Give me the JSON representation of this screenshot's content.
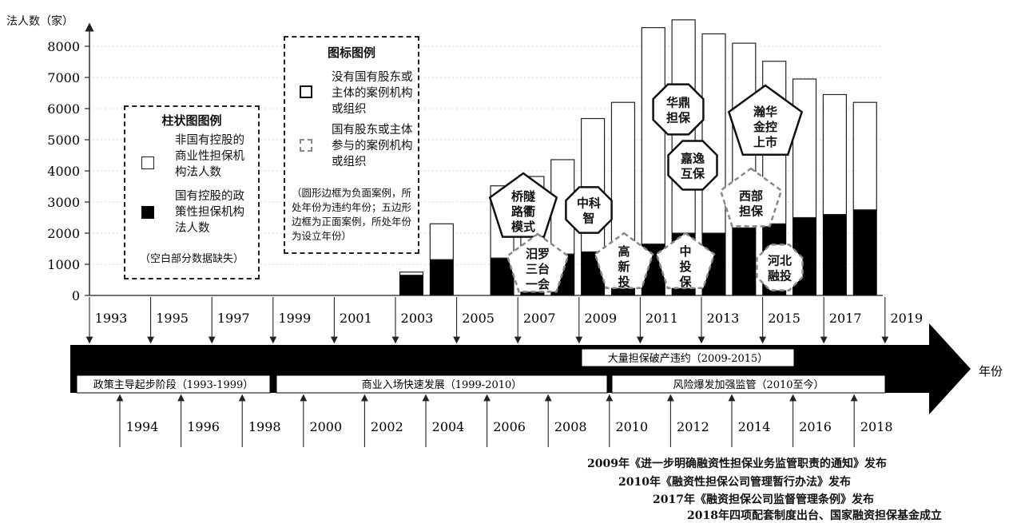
{
  "chart_data": {
    "type": "bar",
    "ylabel": "法人数（家）",
    "xlabel": "年份",
    "ylim": [
      0,
      8000
    ],
    "yticks": [
      0,
      1000,
      2000,
      3000,
      4000,
      5000,
      6000,
      7000,
      8000
    ],
    "categories": [
      2003,
      2004,
      2006,
      2007,
      2008,
      2009,
      2010,
      2011,
      2012,
      2013,
      2014,
      2015,
      2016,
      2017,
      2018
    ],
    "series": [
      {
        "name": "国有控股的政策性担保机构法人数",
        "values": [
          650,
          1150,
          1200,
          1200,
          1330,
          1400,
          1550,
          1650,
          2000,
          2000,
          2170,
          2300,
          2500,
          2600,
          2750
        ]
      },
      {
        "name": "非国有控股的商业性担保机构法人数",
        "values": [
          100,
          1150,
          2320,
          2620,
          3030,
          4280,
          4650,
          6950,
          6850,
          6400,
          5930,
          5220,
          4450,
          3850,
          3450
        ]
      }
    ],
    "totals": [
      750,
      2300,
      3520,
      3820,
      4360,
      5680,
      6200,
      8600,
      8850,
      8400,
      8100,
      7520,
      6950,
      6450,
      6200
    ]
  },
  "timeline": {
    "top_years": [
      "1993",
      "1995",
      "1997",
      "1999",
      "2001",
      "2003",
      "2005",
      "2007",
      "2009",
      "2011",
      "2013",
      "2015",
      "2017",
      "2019"
    ],
    "bottom_years": [
      "1994",
      "1996",
      "1998",
      "2000",
      "2002",
      "2004",
      "2006",
      "2008",
      "2010",
      "2012",
      "2014",
      "2016",
      "2018"
    ],
    "arrow_label": "年份",
    "phase_upper": "大量担保破产违约（2009-2015）",
    "phases": [
      "政策主导起步阶段（1993-1999）",
      "商业入场快速发展（1999-2010）",
      "风险爆发加强监管（2010至今）"
    ]
  },
  "bar_legend": {
    "title": "柱状图图例",
    "white_label": "非国有控股的商业性担保机构法人数",
    "black_label": "国有控股的政策性担保机构法人数",
    "note": "（空白部分数据缺失）"
  },
  "icon_legend": {
    "title": "图标图例",
    "solid_label": "没有国有股东或主体的案例机构或组织",
    "dashed_label": "国有股东或主体参与的案例机构或组织",
    "note": "（圆形边框为负面案例，所处年份为违约年份；五边形边框为正面案例，所处年份为设立年份）"
  },
  "case_labels": {
    "qiaosui": "桥隧路衢模式",
    "miluo": "汨罗三台一会",
    "zhongkezhi": "中科智",
    "gaoxintou": "高新投",
    "huading": "华鼎担保",
    "zhongtoubao": "中投保",
    "jiayi": "嘉逸互保",
    "hanhua": "瀚华金控上市",
    "xibu": "西部担保",
    "hebei": "河北融投"
  },
  "policies": [
    "2009年《进一步明确融资性担保业务监管职责的通知》发布",
    "2010年《融资性担保公司管理暂行办法》发布",
    "2017年《融资担保公司监督管理条例》发布",
    "2018年四项配套制度出台、国家融资担保基金成立"
  ]
}
